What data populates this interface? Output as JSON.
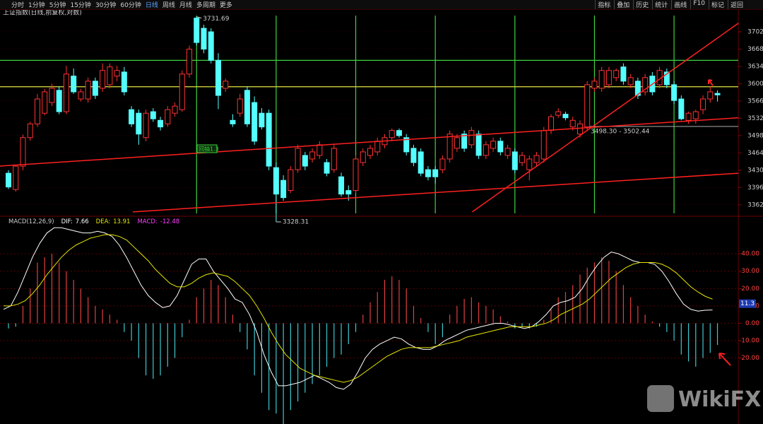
{
  "toolbar": {
    "tabs": [
      "分时",
      "1分钟",
      "5分钟",
      "15分钟",
      "30分钟",
      "60分钟",
      "日线",
      "周线",
      "月线",
      "多周期",
      "更多"
    ],
    "tools": [
      "指标",
      "叠加",
      "历史",
      "统计",
      "画线",
      "F10",
      "标记",
      "返回"
    ]
  },
  "watermark": "WikiFX",
  "chart_data": [
    {
      "type": "candlestick",
      "title": "上证指数(日线,前复权,对数)",
      "up_color": "#ff3232",
      "down_color": "#54ffff",
      "grid": true,
      "ylim": [
        3345,
        3734
      ],
      "yticks": [
        3702,
        3668,
        3634,
        3600,
        3566,
        3532,
        3498,
        3464,
        3430,
        3396,
        3362
      ],
      "open": [
        3424,
        3392,
        3438,
        3494,
        3521,
        3542,
        3563,
        3587,
        3545,
        3615,
        3570,
        3570,
        3605,
        3591,
        3598,
        3615,
        3623,
        3549,
        3542,
        3494,
        3545,
        3528,
        3521,
        3542,
        3549,
        3619,
        3729,
        3709,
        3702,
        3646,
        3591,
        3528,
        3542,
        3587,
        3563,
        3542,
        3542,
        3435,
        3410,
        3390,
        3431,
        3459,
        3452,
        3459,
        3445,
        3431,
        3417,
        3390,
        3390,
        3445,
        3459,
        3466,
        3480,
        3494,
        3508,
        3494,
        3473,
        3466,
        3431,
        3431,
        3431,
        3452,
        3473,
        3501,
        3480,
        3501,
        3459,
        3473,
        3487,
        3459,
        3466,
        3445,
        3431,
        3445,
        3452,
        3508,
        3538,
        3540,
        3515,
        3501,
        3515,
        3591,
        3591,
        3598,
        3612,
        3633,
        3598,
        3605,
        3584,
        3615,
        3598,
        3623,
        3598,
        3570,
        3528,
        3531,
        3549,
        3570,
        3581
      ],
      "high": [
        3430,
        3440,
        3500,
        3525,
        3580,
        3590,
        3600,
        3595,
        3635,
        3630,
        3590,
        3612,
        3612,
        3640,
        3640,
        3635,
        3633,
        3556,
        3549,
        3549,
        3552,
        3535,
        3556,
        3563,
        3626,
        3675,
        3731.69,
        3716,
        3709,
        3660,
        3610,
        3540,
        3580,
        3595,
        3575,
        3552,
        3549,
        3445,
        3420,
        3438,
        3480,
        3466,
        3473,
        3487,
        3452,
        3480,
        3425,
        3400,
        3459,
        3473,
        3480,
        3494,
        3501,
        3512,
        3512,
        3501,
        3480,
        3473,
        3438,
        3438,
        3459,
        3508,
        3501,
        3508,
        3515,
        3508,
        3487,
        3494,
        3494,
        3480,
        3473,
        3466,
        3459,
        3466,
        3515,
        3540,
        3552,
        3545,
        3535,
        3528,
        3605,
        3612,
        3633,
        3633,
        3630,
        3640,
        3619,
        3612,
        3619,
        3623,
        3633,
        3630,
        3605,
        3577,
        3545,
        3549,
        3577,
        3595,
        3587
      ],
      "low": [
        3393,
        3388,
        3430,
        3488,
        3515,
        3538,
        3556,
        3540,
        3540,
        3580,
        3565,
        3563,
        3570,
        3584,
        3591,
        3605,
        3577,
        3515,
        3480,
        3487,
        3525,
        3508,
        3515,
        3535,
        3545,
        3612,
        3675,
        3660,
        3640,
        3550,
        3584,
        3515,
        3535,
        3515,
        3480,
        3510,
        3430,
        3328.31,
        3370,
        3385,
        3425,
        3430,
        3445,
        3452,
        3418,
        3425,
        3378,
        3370,
        3385,
        3438,
        3452,
        3459,
        3473,
        3487,
        3494,
        3459,
        3438,
        3418,
        3410,
        3404,
        3424,
        3445,
        3466,
        3466,
        3473,
        3452,
        3452,
        3466,
        3459,
        3452,
        3424,
        3438,
        3410,
        3438,
        3445,
        3501,
        3533,
        3528,
        3508,
        3494,
        3508,
        3584,
        3584,
        3591,
        3605,
        3598,
        3591,
        3570,
        3577,
        3577,
        3591,
        3591,
        3560,
        3528,
        3521,
        3521,
        3540,
        3563,
        3565
      ],
      "close": [
        3397,
        3438,
        3494,
        3521,
        3570,
        3584,
        3591,
        3545,
        3619,
        3584,
        3584,
        3605,
        3577,
        3626,
        3633,
        3626,
        3584,
        3521,
        3501,
        3542,
        3531,
        3515,
        3549,
        3556,
        3619,
        3668,
        3681,
        3668,
        3646,
        3577,
        3605,
        3521,
        3570,
        3521,
        3487,
        3515,
        3438,
        3383,
        3376,
        3431,
        3473,
        3438,
        3466,
        3480,
        3424,
        3473,
        3383,
        3383,
        3452,
        3466,
        3473,
        3487,
        3494,
        3508,
        3498,
        3466,
        3445,
        3424,
        3417,
        3417,
        3452,
        3501,
        3494,
        3473,
        3508,
        3459,
        3480,
        3487,
        3466,
        3473,
        3431,
        3459,
        3452,
        3459,
        3508,
        3535,
        3545,
        3533,
        3528,
        3521,
        3598,
        3605,
        3626,
        3626,
        3626,
        3605,
        3612,
        3577,
        3612,
        3584,
        3626,
        3598,
        3567,
        3531,
        3542,
        3545,
        3570,
        3584,
        3578
      ],
      "h_lines": [
        {
          "value": 3646,
          "color": "#3fd23f"
        },
        {
          "value": 3594,
          "color": "#e6e640"
        },
        {
          "value": 3516,
          "from": 80,
          "color": "#9a9a9a"
        }
      ],
      "v_lines": {
        "color": "#3fd23f",
        "at": [
          26,
          37,
          48,
          59,
          70,
          81,
          92
        ]
      },
      "trend_lines": [
        {
          "from": [
            -1.2,
            3438
          ],
          "to": [
            100.9,
            3533
          ],
          "color": "#ff2020"
        },
        {
          "from": [
            17.2,
            3348
          ],
          "to": [
            100.9,
            3424
          ],
          "color": "#ff2020"
        },
        {
          "from": [
            64.1,
            3348
          ],
          "to": [
            100.9,
            3719
          ],
          "color": "#ff2020"
        }
      ],
      "annotations": [
        "3498.30 - 3502.44",
        "回抽1.3"
      ]
    },
    {
      "type": "macd",
      "title": "MACD(12,26,9)",
      "grid": true,
      "ylim": [
        -58,
        60
      ],
      "yticks": [
        {
          "value": 40,
          "label": "40.00"
        },
        {
          "value": 30,
          "label": "30.00"
        },
        {
          "value": 20,
          "label": "20.00"
        },
        {
          "value": 10,
          "label": "10.00"
        },
        {
          "value": 0,
          "label": "0.00"
        },
        {
          "value": -10,
          "label": "-10.00"
        },
        {
          "value": -20,
          "label": "-20.00"
        }
      ],
      "marker": 11.3,
      "series": [
        {
          "name": "DIF:",
          "color": "#ffffff",
          "values": [
            8,
            10,
            18,
            28,
            38,
            46,
            52,
            55,
            55,
            54,
            53,
            52,
            52,
            53,
            52,
            50,
            45,
            38,
            30,
            22,
            16,
            12,
            9,
            10,
            16,
            25,
            34,
            37,
            37,
            30,
            25,
            20,
            14,
            12,
            5,
            -5,
            -18,
            -28,
            -36,
            -36,
            -35,
            -34,
            -32,
            -30,
            -32,
            -34,
            -37,
            -38,
            -35,
            -28,
            -20,
            -15,
            -12,
            -10,
            -8,
            -9,
            -12,
            -14,
            -15,
            -15,
            -13,
            -10,
            -8,
            -6,
            -4,
            -3,
            -2,
            -1,
            0,
            0,
            -1,
            -2,
            -3,
            -2,
            1,
            5,
            10,
            12,
            13,
            15,
            20,
            27,
            33,
            38,
            41,
            40,
            38,
            36,
            35,
            35,
            34,
            30,
            24,
            17,
            11,
            8,
            7,
            7.5,
            7.66
          ]
        },
        {
          "name": "DEA:",
          "color": "#e6e600",
          "values": [
            10,
            10,
            11,
            13,
            17,
            22,
            28,
            33,
            38,
            42,
            45,
            47,
            49,
            50,
            51,
            51,
            50,
            48,
            44,
            40,
            36,
            31,
            27,
            23,
            21,
            21,
            23,
            26,
            28,
            29,
            28,
            27,
            24,
            20,
            16,
            10,
            3,
            -5,
            -12,
            -18,
            -22,
            -26,
            -28,
            -30,
            -31,
            -32,
            -33,
            -34,
            -33,
            -31,
            -28,
            -25,
            -22,
            -19,
            -17,
            -15,
            -14,
            -14,
            -14,
            -14,
            -13,
            -12,
            -11,
            -10,
            -8,
            -7,
            -6,
            -5,
            -4,
            -3,
            -2,
            -2,
            -2,
            -2,
            -1,
            0,
            2,
            5,
            7,
            9,
            11,
            14,
            18,
            22,
            26,
            29,
            32,
            34,
            35,
            35,
            35,
            34,
            32,
            29,
            25,
            21,
            18,
            15.5,
            13.91
          ]
        },
        {
          "name": "MACD:",
          "type": "bar",
          "color": "#ff3cff",
          "up_color": "#e04040",
          "down_color": "#3ec8d0",
          "values": [
            -3,
            -2,
            10,
            20,
            35,
            38,
            40,
            35,
            30,
            25,
            20,
            15,
            10,
            8,
            5,
            2,
            -5,
            -10,
            -20,
            -30,
            -32,
            -30,
            -25,
            -20,
            -8,
            2,
            15,
            20,
            25,
            22,
            15,
            5,
            -5,
            -15,
            -30,
            -40,
            -50,
            -52,
            -58,
            -50,
            -45,
            -40,
            -35,
            -30,
            -25,
            -20,
            -18,
            -12,
            -5,
            5,
            12,
            18,
            25,
            27,
            25,
            20,
            10,
            3,
            -5,
            -12,
            -8,
            5,
            10,
            14,
            15,
            12,
            10,
            8,
            4,
            1,
            -3,
            -2,
            -3,
            -2,
            2,
            8,
            15,
            18,
            22,
            28,
            32,
            35,
            38,
            36,
            30,
            22,
            15,
            10,
            5,
            1,
            -2,
            -5,
            -10,
            -18,
            -22,
            -25,
            -20,
            -17,
            -12.48
          ]
        }
      ]
    }
  ]
}
